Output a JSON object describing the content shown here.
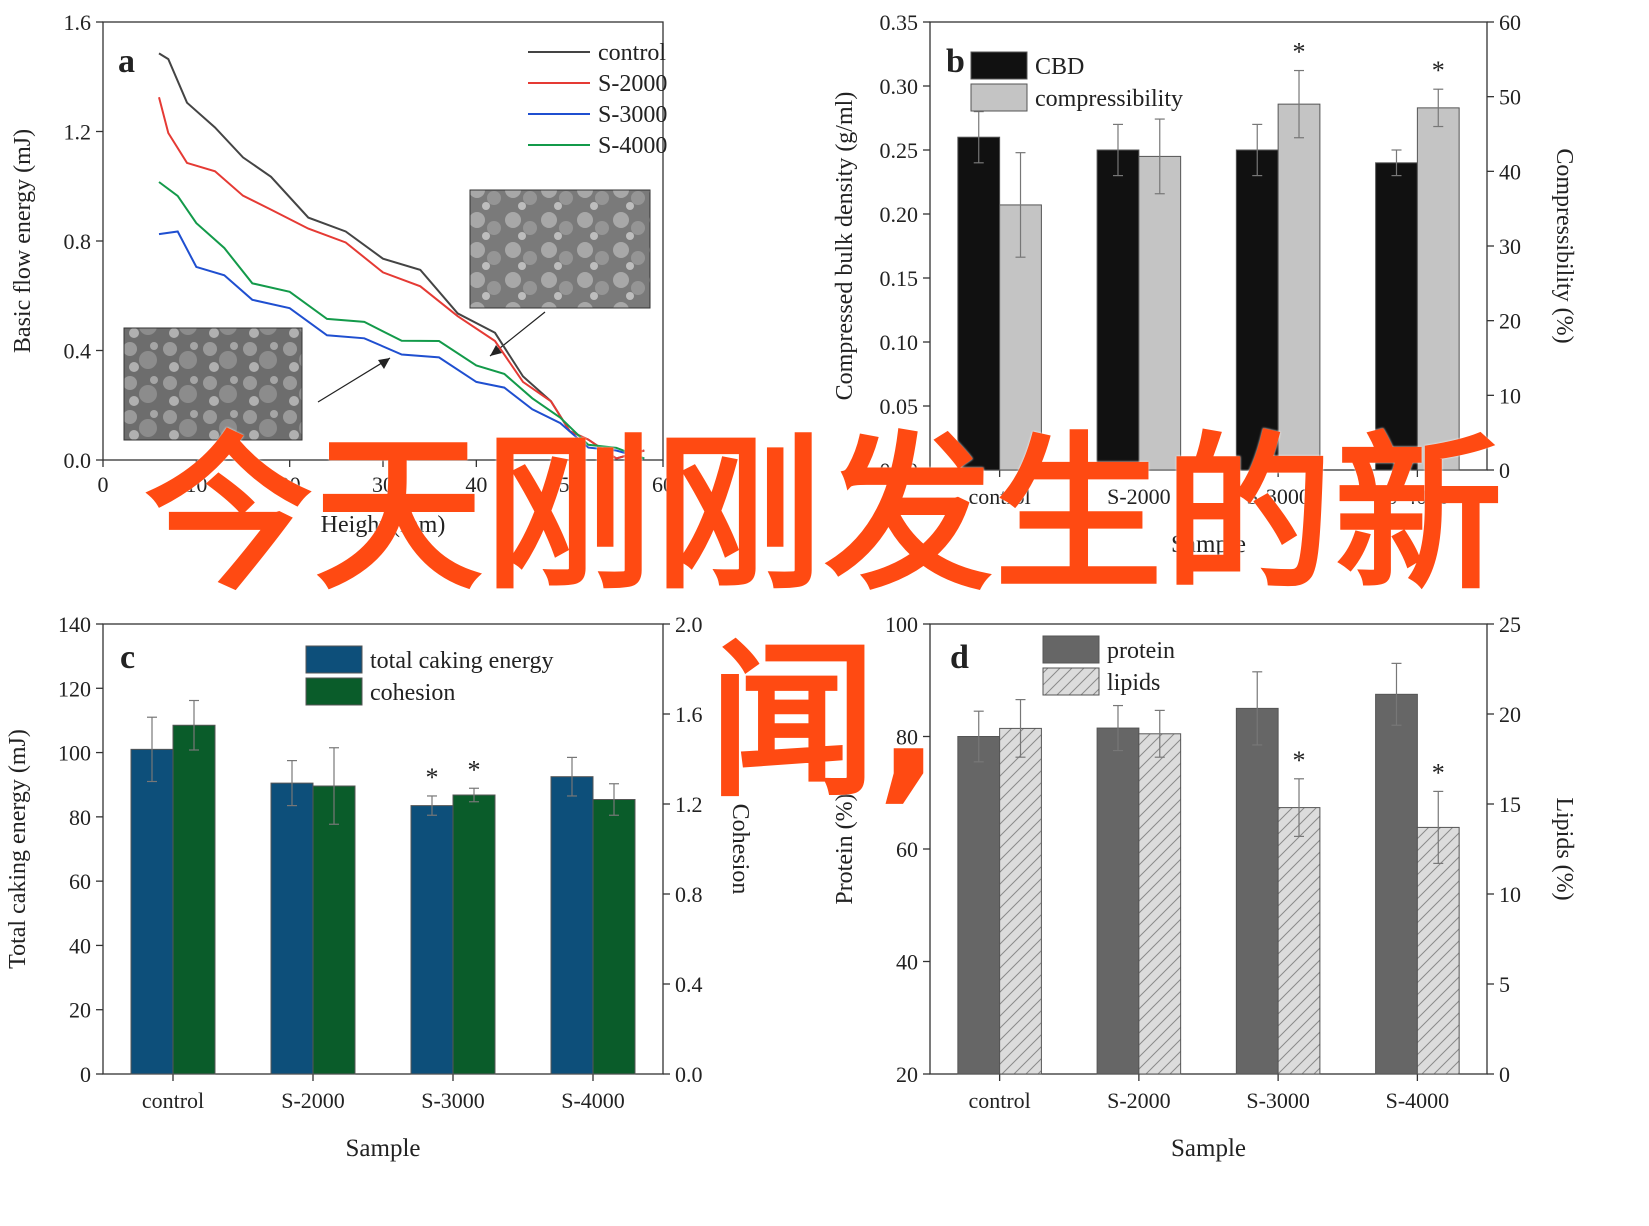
{
  "overlay_text": {
    "line1": "今天刚刚发生的新",
    "line2": "闻,"
  },
  "colors": {
    "black": "#111111",
    "gray": "#c4c4c4",
    "blue": "#0d4f7a",
    "green": "#0a5c2a",
    "darkgray": "#666666",
    "hatch": "#dcdcdc",
    "red": "#e53a34",
    "lineblue": "#1f4fd0",
    "linegreen": "#139a4a",
    "control": "#444444"
  },
  "chart_data": [
    {
      "panel": "a",
      "type": "line",
      "xlabel": "Height (mm)",
      "ylabel": "Basic flow energy (mJ)",
      "xlim": [
        0,
        60
      ],
      "ylim": [
        0,
        1.6
      ],
      "xticks": [
        "0",
        "10",
        "20",
        "30",
        "40",
        "50",
        "60"
      ],
      "yticks": [
        "0.0",
        "0.4",
        "0.8",
        "1.2",
        "1.6"
      ],
      "legend_position": "top-right",
      "inset_images": [
        "sem-micrograph-left",
        "sem-micrograph-right"
      ],
      "series": [
        {
          "name": "control",
          "color": "#444444",
          "x": [
            6,
            7,
            9,
            12,
            15,
            18,
            22,
            26,
            30,
            34,
            38,
            42,
            45,
            48,
            50,
            52,
            55,
            58
          ],
          "y": [
            1.5,
            1.45,
            1.32,
            1.2,
            1.12,
            1.02,
            0.9,
            0.82,
            0.75,
            0.68,
            0.55,
            0.45,
            0.32,
            0.2,
            0.12,
            0.06,
            0.02,
            0.02
          ]
        },
        {
          "name": "S-2000",
          "color": "#e53a34",
          "x": [
            6,
            7,
            9,
            12,
            15,
            18,
            22,
            26,
            30,
            34,
            38,
            42,
            45,
            48,
            50,
            52,
            55,
            58
          ],
          "y": [
            1.34,
            1.18,
            1.1,
            1.04,
            0.98,
            0.9,
            0.86,
            0.78,
            0.7,
            0.62,
            0.54,
            0.42,
            0.3,
            0.2,
            0.12,
            0.06,
            0.02,
            0.02
          ]
        },
        {
          "name": "S-3000",
          "color": "#1f4fd0",
          "x": [
            6,
            8,
            10,
            13,
            16,
            20,
            24,
            28,
            32,
            36,
            40,
            43,
            46,
            49,
            52,
            55,
            58
          ],
          "y": [
            0.84,
            0.82,
            0.72,
            0.66,
            0.6,
            0.54,
            0.47,
            0.43,
            0.4,
            0.36,
            0.3,
            0.25,
            0.2,
            0.12,
            0.06,
            0.02,
            0.02
          ]
        },
        {
          "name": "S-4000",
          "color": "#139a4a",
          "x": [
            6,
            8,
            10,
            13,
            16,
            20,
            24,
            28,
            32,
            36,
            40,
            43,
            46,
            49,
            52,
            55,
            58
          ],
          "y": [
            1.03,
            0.95,
            0.88,
            0.76,
            0.66,
            0.6,
            0.53,
            0.49,
            0.45,
            0.42,
            0.36,
            0.3,
            0.24,
            0.14,
            0.07,
            0.03,
            0.02
          ]
        }
      ]
    },
    {
      "panel": "b",
      "type": "bar",
      "categories": [
        "control",
        "S-2000",
        "S-3000",
        "S-4000"
      ],
      "xlabel": "Sample",
      "ylabel": "Compressed bulk density (g/ml)",
      "ylabel_right": "Compressibility (%)",
      "ylim": [
        0,
        0.35
      ],
      "ylim_right": [
        0,
        60
      ],
      "yticks": [
        "0.00",
        "0.05",
        "0.10",
        "0.15",
        "0.20",
        "0.25",
        "0.30",
        "0.35"
      ],
      "yticks_right": [
        "0",
        "10",
        "20",
        "30",
        "40",
        "50",
        "60"
      ],
      "legend_position": "top-left",
      "series": [
        {
          "name": "CBD",
          "axis": "left",
          "style": "black",
          "values": [
            0.26,
            0.25,
            0.25,
            0.24
          ],
          "errors": [
            0.02,
            0.02,
            0.02,
            0.01
          ]
        },
        {
          "name": "compressibility",
          "axis": "right",
          "style": "gray",
          "values": [
            35.5,
            42,
            49,
            48.5
          ],
          "errors": [
            7,
            5,
            4.5,
            2.5
          ]
        }
      ],
      "significance": [
        {
          "category": "S-3000",
          "series": "compressibility",
          "mark": "*"
        },
        {
          "category": "S-4000",
          "series": "compressibility",
          "mark": "*"
        }
      ]
    },
    {
      "panel": "c",
      "type": "bar",
      "categories": [
        "control",
        "S-2000",
        "S-3000",
        "S-4000"
      ],
      "xlabel": "Sample",
      "ylabel": "Total caking energy (mJ)",
      "ylabel_right": "Cohesion",
      "ylim": [
        0,
        140
      ],
      "ylim_right": [
        0,
        2.0
      ],
      "yticks": [
        "0",
        "20",
        "40",
        "60",
        "80",
        "100",
        "120",
        "140"
      ],
      "yticks_right": [
        "0.0",
        "0.4",
        "0.8",
        "1.2",
        "1.6",
        "2.0"
      ],
      "legend_position": "top-center",
      "series": [
        {
          "name": "total caking energy",
          "axis": "left",
          "style": "blue",
          "values": [
            101,
            90.5,
            83.5,
            92.5
          ],
          "errors": [
            10,
            7,
            3,
            6
          ]
        },
        {
          "name": "cohesion",
          "axis": "right",
          "style": "green",
          "values": [
            1.55,
            1.28,
            1.24,
            1.22
          ],
          "errors": [
            0.11,
            0.17,
            0.03,
            0.07
          ]
        }
      ],
      "significance": [
        {
          "category": "S-3000",
          "series": "total caking energy",
          "mark": "*"
        },
        {
          "category": "S-3000",
          "series": "cohesion",
          "mark": "*"
        }
      ]
    },
    {
      "panel": "d",
      "type": "bar",
      "categories": [
        "control",
        "S-2000",
        "S-3000",
        "S-4000"
      ],
      "xlabel": "Sample",
      "ylabel": "Protein (%)",
      "ylabel_right": "Lipids (%)",
      "ylim": [
        20,
        100
      ],
      "ylim_right": [
        0,
        25
      ],
      "yticks": [
        "20",
        "40",
        "60",
        "80",
        "100"
      ],
      "yticks_right": [
        "0",
        "5",
        "10",
        "15",
        "20",
        "25"
      ],
      "legend_position": "top-left",
      "series": [
        {
          "name": "protein",
          "axis": "left",
          "style": "darkgray",
          "values": [
            80,
            81.5,
            85,
            87.5
          ],
          "errors": [
            4.5,
            4,
            6.5,
            5.5
          ]
        },
        {
          "name": "lipids",
          "axis": "right",
          "style": "hatched",
          "values": [
            19.2,
            18.9,
            14.8,
            13.7
          ],
          "errors": [
            1.6,
            1.3,
            1.6,
            2.0
          ]
        }
      ],
      "significance": [
        {
          "category": "S-3000",
          "series": "lipids",
          "mark": "*"
        },
        {
          "category": "S-4000",
          "series": "lipids",
          "mark": "*"
        }
      ]
    }
  ],
  "panel_labels": [
    "a",
    "b",
    "c",
    "d"
  ]
}
